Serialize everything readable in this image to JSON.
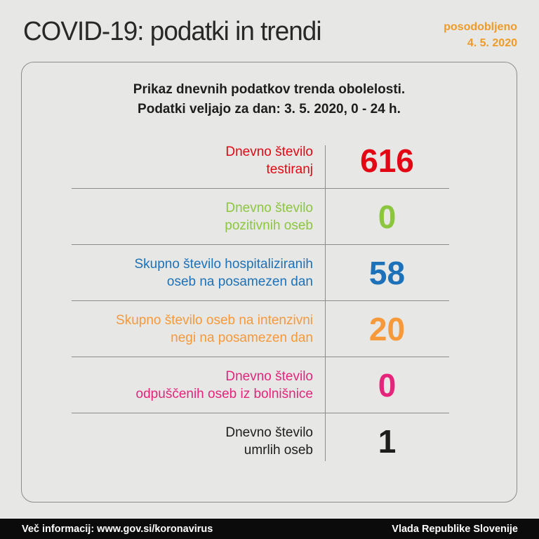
{
  "header": {
    "title": "COVID-19: podatki in trendi",
    "updated": {
      "label": "posodobljeno",
      "date": "4. 5. 2020"
    }
  },
  "card": {
    "subtitle_line1": "Prikaz dnevnih podatkov trenda obolelosti.",
    "subtitle_line2": "Podatki veljajo za dan: 3. 5. 2020, 0 - 24 h."
  },
  "stats": [
    {
      "label_lines": [
        "Dnevno število",
        "testiranj"
      ],
      "value": "616",
      "color": "#e30613"
    },
    {
      "label_lines": [
        "Dnevno število",
        "pozitivnih oseb"
      ],
      "value": "0",
      "color": "#8cc63f"
    },
    {
      "label_lines": [
        "Skupno število hospitaliziranih",
        "oseb na posamezen dan"
      ],
      "value": "58",
      "color": "#1d71b8"
    },
    {
      "label_lines": [
        "Skupno število oseb na intenzivni",
        "negi na posamezen dan"
      ],
      "value": "20",
      "color": "#f6993a"
    },
    {
      "label_lines": [
        "Dnevno število",
        "odpuščenih oseb iz bolnišnice"
      ],
      "value": "0",
      "color": "#e6247c"
    },
    {
      "label_lines": [
        "Dnevno število",
        "umrlih oseb"
      ],
      "value": "1",
      "color": "#1d1d1b"
    }
  ],
  "footer": {
    "left": "Več informacij: www.gov.si/koronavirus",
    "right": "Vlada Republike Slovenije"
  },
  "colors": {
    "background": "#e7e7e5",
    "card_border": "#8c8c8c",
    "divider": "#8c8c8c",
    "accent_orange": "#ef9b28",
    "heading": "#282827",
    "footer_bg": "#0b0b0b",
    "footer_text": "#ffffff"
  },
  "chart_data": {
    "type": "table",
    "title": "COVID-19: podatki in trendi",
    "subtitle": "Prikaz dnevnih podatkov trenda obolelosti. Podatki veljajo za dan: 3. 5. 2020, 0 - 24 h.",
    "updated": "4. 5. 2020",
    "rows": [
      {
        "label": "Dnevno število testiranj",
        "value": 616,
        "color": "#e30613"
      },
      {
        "label": "Dnevno število pozitivnih oseb",
        "value": 0,
        "color": "#8cc63f"
      },
      {
        "label": "Skupno število hospitaliziranih oseb na posamezen dan",
        "value": 58,
        "color": "#1d71b8"
      },
      {
        "label": "Skupno število oseb na intenzivni negi na posamezen dan",
        "value": 20,
        "color": "#f6993a"
      },
      {
        "label": "Dnevno število odpuščenih oseb iz bolnišnice",
        "value": 0,
        "color": "#e6247c"
      },
      {
        "label": "Dnevno število umrlih oseb",
        "value": 1,
        "color": "#1d1d1b"
      }
    ],
    "source": "Vlada Republike Slovenije"
  }
}
